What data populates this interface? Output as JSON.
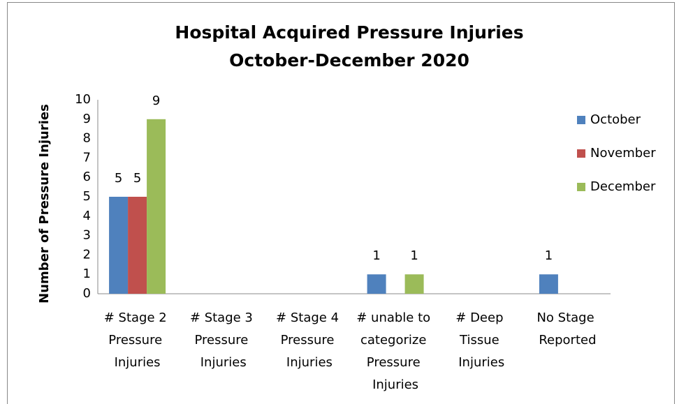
{
  "chart_data": {
    "type": "bar",
    "title": "Hospital Acquired Pressure Injuries",
    "subtitle": "October-December 2020",
    "y_label": "Number of Pressure Injuries",
    "categories": [
      "# Stage 2 Pressure Injuries",
      "# Stage 3 Pressure Injuries",
      "# Stage 4 Pressure Injuries",
      "# unable to categorize Pressure Injuries",
      "# Deep Tissue Injuries",
      "No Stage Reported"
    ],
    "series": [
      {
        "name": "October",
        "color": "#4f81bd",
        "values": [
          5,
          0,
          0,
          1,
          0,
          1
        ]
      },
      {
        "name": "November",
        "color": "#c0504d",
        "values": [
          5,
          0,
          0,
          0,
          0,
          0
        ]
      },
      {
        "name": "December",
        "color": "#9bbb59",
        "values": [
          9,
          0,
          0,
          1,
          0,
          0
        ]
      }
    ],
    "ylim": [
      0,
      10
    ],
    "yticks": [
      0,
      1,
      2,
      3,
      4,
      5,
      6,
      7,
      8,
      9,
      10
    ],
    "grid": false,
    "legend": "right"
  }
}
